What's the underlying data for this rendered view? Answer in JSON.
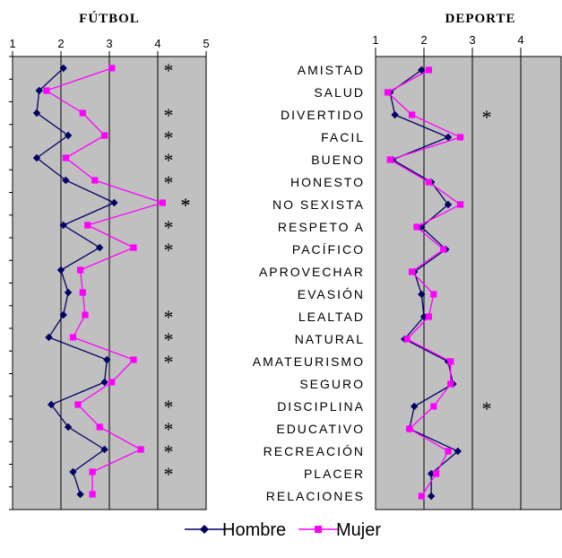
{
  "chart_data": [
    {
      "type": "line",
      "title": "FÚTBOL",
      "xlim": [
        1,
        5
      ],
      "xticks": [
        "1",
        "2",
        "3",
        "4",
        "5"
      ],
      "categories": [
        "AMISTAD",
        "SALUD",
        "DIVERTIDO",
        "FACIL",
        "BUENO",
        "HONESTO",
        "NO SEXISTA",
        "RESPETO A",
        "PACÍFICO",
        "APROVECHAR",
        "EVASIÓN",
        "LEALTAD",
        "NATURAL",
        "AMATEURISMO",
        "SEGURO",
        "DISCIPLINA",
        "EDUCATIVO",
        "RECREACIÓN",
        "PLACER",
        "RELACIONES"
      ],
      "series": [
        {
          "name": "Hombre",
          "color": "#000066",
          "marker": "diamond",
          "values": [
            2.05,
            1.55,
            1.5,
            2.15,
            1.5,
            2.1,
            3.1,
            2.05,
            2.8,
            2.0,
            2.15,
            2.05,
            1.75,
            2.95,
            2.9,
            1.8,
            2.15,
            2.9,
            2.25,
            2.4
          ]
        },
        {
          "name": "Mujer",
          "color": "#FF00FF",
          "marker": "square",
          "values": [
            3.05,
            1.7,
            2.45,
            2.9,
            2.1,
            2.7,
            4.1,
            2.55,
            3.5,
            2.4,
            2.45,
            2.5,
            2.25,
            3.5,
            3.05,
            2.35,
            2.8,
            3.65,
            2.65,
            2.65
          ]
        }
      ],
      "significance_marks": [
        "*",
        "*",
        "*",
        "*",
        "*",
        "*",
        "*",
        "*",
        "*",
        "*",
        "*",
        "*",
        "*",
        "*",
        "*",
        "*"
      ],
      "grid": "vertical",
      "background": "#C0C0C0"
    },
    {
      "type": "line",
      "title": "DEPORTE",
      "xlim": [
        1,
        5
      ],
      "xticks": [
        "1",
        "2",
        "3",
        "4"
      ],
      "categories": [
        "AMISTAD",
        "SALUD",
        "DIVERTIDO",
        "FACIL",
        "BUENO",
        "HONESTO",
        "NO SEXISTA",
        "RESPETO A",
        "PACÍFICO",
        "APROVECHAR",
        "EVASIÓN",
        "LEALTAD",
        "NATURAL",
        "AMATEURISMO",
        "SEGURO",
        "DISCIPLINA",
        "EDUCATIVO",
        "RECREACIÓN",
        "PLACER",
        "RELACIONES"
      ],
      "series": [
        {
          "name": "Hombre",
          "color": "#000066",
          "marker": "diamond",
          "values": [
            1.95,
            1.3,
            1.4,
            2.5,
            1.35,
            2.15,
            2.5,
            1.95,
            2.45,
            1.8,
            1.95,
            2.0,
            1.6,
            2.5,
            2.6,
            1.8,
            1.7,
            2.7,
            2.15,
            2.15
          ]
        },
        {
          "name": "Mujer",
          "color": "#FF00FF",
          "marker": "square",
          "values": [
            2.1,
            1.25,
            1.75,
            2.75,
            1.3,
            2.1,
            2.75,
            1.85,
            2.4,
            1.75,
            2.2,
            2.1,
            1.65,
            2.55,
            2.55,
            2.2,
            1.7,
            2.5,
            2.25,
            1.95
          ]
        }
      ],
      "significance_marks": [
        "*",
        "*"
      ],
      "grid": "vertical",
      "background": "#C0C0C0"
    }
  ],
  "legend": {
    "placement": "bottom",
    "items": [
      {
        "label": "Hombre",
        "color": "#000066",
        "marker": "diamond"
      },
      {
        "label": "Mujer",
        "color": "#FF00FF",
        "marker": "square"
      }
    ]
  }
}
